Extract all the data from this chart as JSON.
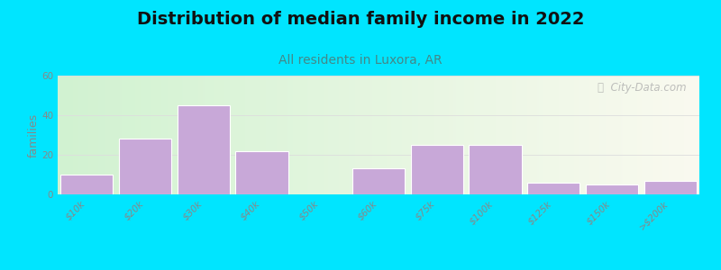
{
  "title": "Distribution of median family income in 2022",
  "subtitle": "All residents in Luxora, AR",
  "ylabel": "families",
  "categories": [
    "$10k",
    "$20k",
    "$30k",
    "$40k",
    "$50k",
    "$60k",
    "$75k",
    "$100k",
    "$125k",
    "$150k",
    ">$200k"
  ],
  "values": [
    10,
    28,
    45,
    22,
    0,
    13,
    25,
    25,
    6,
    5,
    7
  ],
  "bar_color": "#c8a8d8",
  "bar_edge_color": "#ffffff",
  "ylim": [
    0,
    60
  ],
  "yticks": [
    0,
    20,
    40,
    60
  ],
  "background_outer": "#00e5ff",
  "background_inner_topleft": "#d4f0d4",
  "background_inner_topright": "#f8f8f0",
  "background_inner_bottomleft": "#d4f0d4",
  "background_inner_bottomright": "#f8f8f0",
  "title_fontsize": 14,
  "subtitle_fontsize": 10,
  "subtitle_color": "#448888",
  "ylabel_fontsize": 9,
  "tick_fontsize": 7.5,
  "tick_color": "#888888",
  "watermark": "Ⓢ  City-Data.com",
  "watermark_color": "#aaaaaa",
  "grid_color": "#dddddd",
  "bar_width": 0.9
}
